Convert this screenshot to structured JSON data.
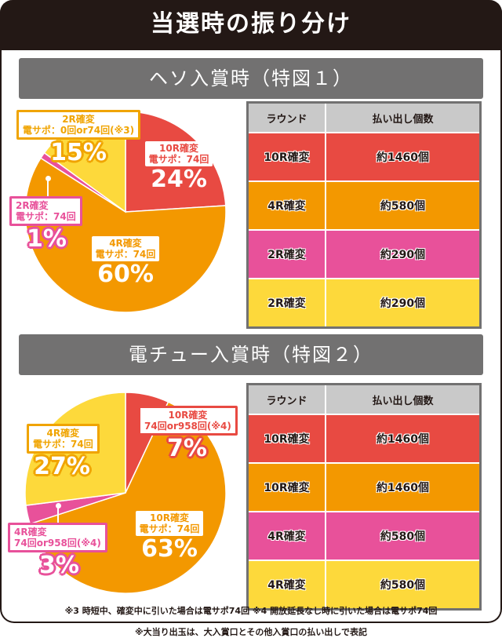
{
  "header": {
    "title": "当選時の振り分け"
  },
  "sections": [
    {
      "title": "ヘソ入賞時（特図１）",
      "table": {
        "headers": [
          "ラウンド",
          "払い出し個数"
        ],
        "rows": [
          {
            "round": "10R確変",
            "payout": "約1460個",
            "color": "#e84a42"
          },
          {
            "round": "4R確変",
            "payout": "約580個",
            "color": "#f39800"
          },
          {
            "round": "2R確変",
            "payout": "約290個",
            "color": "#e8519a"
          },
          {
            "round": "2R確変",
            "payout": "約290個",
            "color": "#fdd93b"
          }
        ]
      },
      "pie_labels": [
        {
          "line1": "10R確変",
          "line2": "電サポ：74回",
          "pct": "24%"
        },
        {
          "line1": "4R確変",
          "line2": "電サポ：74回",
          "pct": "60%"
        },
        {
          "line1": "2R確変",
          "line2": "電サポ：74回",
          "pct": "1%"
        },
        {
          "line1": "2R確変",
          "line2": "電サポ：0回or74回(※3)",
          "pct": "15%"
        }
      ]
    },
    {
      "title": "電チュー入賞時（特図２）",
      "table": {
        "headers": [
          "ラウンド",
          "払い出し個数"
        ],
        "rows": [
          {
            "round": "10R確変",
            "payout": "約1460個",
            "color": "#e84a42"
          },
          {
            "round": "10R確変",
            "payout": "約1460個",
            "color": "#f39800"
          },
          {
            "round": "4R確変",
            "payout": "約580個",
            "color": "#e8519a"
          },
          {
            "round": "4R確変",
            "payout": "約580個",
            "color": "#fdd93b"
          }
        ]
      },
      "pie_labels": [
        {
          "line1": "10R確変",
          "line2": "74回or958回(※4)",
          "pct": "7%"
        },
        {
          "line1": "10R確変",
          "line2": "電サポ：74回",
          "pct": "63%"
        },
        {
          "line1": "4R確変",
          "line2": "74回or958回(※4)",
          "pct": "3%"
        },
        {
          "line1": "4R確変",
          "line2": "電サポ：74回",
          "pct": "27%"
        }
      ]
    }
  ],
  "footnotes": {
    "inner": "※3 時短中、確変中に引いた場合は電サポ74回  ※4 開放延長なし時に引いた場合は電サポ74回",
    "outer": "※大当り出玉は、大入賞口とその他入賞口の払い出しで表記"
  },
  "colors": {
    "red": "#e84a42",
    "orange": "#f39800",
    "pink": "#e8519a",
    "yellow": "#fdd93b",
    "dark": "#231815",
    "gray": "#727171"
  },
  "chart_data": [
    {
      "type": "pie",
      "title": "ヘソ入賞時（特図１）",
      "categories": [
        "10R確変 電サポ:74回",
        "4R確変 電サポ:74回",
        "2R確変 電サポ:74回",
        "2R確変 電サポ:0回or74回(※3)"
      ],
      "values": [
        24,
        60,
        1,
        15
      ],
      "colors": [
        "#e84a42",
        "#f39800",
        "#e8519a",
        "#fdd93b"
      ],
      "start": "12 o'clock, clockwise"
    },
    {
      "type": "pie",
      "title": "電チュー入賞時（特図２）",
      "categories": [
        "10R確変 74回or958回(※4)",
        "10R確変 電サポ:74回",
        "4R確変 74回or958回(※4)",
        "4R確変 電サポ:74回"
      ],
      "values": [
        7,
        63,
        3,
        27
      ],
      "colors": [
        "#e84a42",
        "#f39800",
        "#e8519a",
        "#fdd93b"
      ],
      "start": "12 o'clock, clockwise"
    }
  ]
}
